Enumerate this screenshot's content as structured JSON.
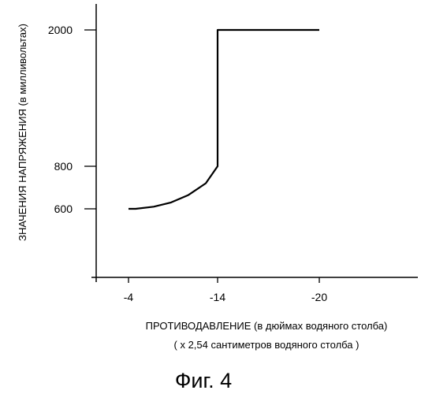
{
  "chart_data": {
    "type": "line",
    "xlabel": "ПРОТИВОДАВЛЕНИЕ  (в дюймах водяного столба)",
    "xlabel_sub": "( х 2,54  сантиметров  водяного  столба )",
    "ylabel": "ЗНАЧЕНИЯ  НАПРЯЖЕНИЯ  (в милливольтах)",
    "x_ticks": [
      "-4",
      "-14",
      "-20"
    ],
    "y_ticks": [
      "2000",
      "800",
      "600"
    ],
    "series": [
      {
        "points": [
          {
            "x": "-4",
            "y": 600
          },
          {
            "x": "-5",
            "y": 600
          },
          {
            "x": "-7",
            "y": 610
          },
          {
            "x": "-9",
            "y": 630
          },
          {
            "x": "-11",
            "y": 665
          },
          {
            "x": "-13",
            "y": 720
          },
          {
            "x": "-14",
            "y": 800
          },
          {
            "x": "-14",
            "y": 2000
          },
          {
            "x": "-20",
            "y": 2000
          }
        ]
      }
    ],
    "grid": false,
    "line_color": "#000000"
  },
  "caption": "Фиг. 4"
}
